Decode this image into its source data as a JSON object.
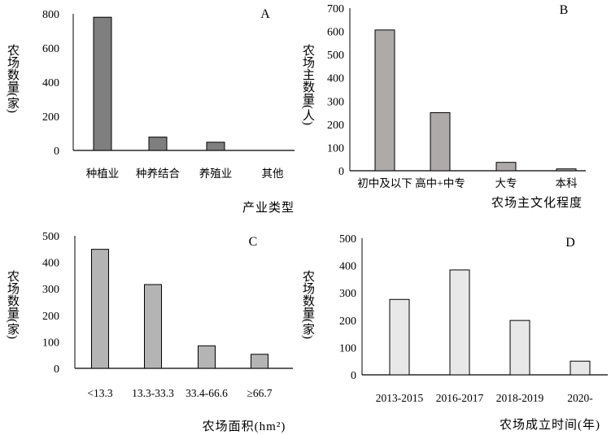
{
  "chart_data": [
    {
      "panel": "A",
      "type": "bar",
      "categories": [
        "种植业",
        "种养结合",
        "养殖业",
        "其他"
      ],
      "values": [
        780,
        78,
        48,
        0
      ],
      "ylim": [
        0,
        800
      ],
      "yticks": [
        0,
        200,
        400,
        600,
        800
      ],
      "xlabel": "产业类型",
      "ylabel": "农场数量(家)",
      "bar_color": "#7f7f7f"
    },
    {
      "panel": "B",
      "type": "bar",
      "categories": [
        "初中及以下",
        "高中+中专",
        "大专",
        "本科"
      ],
      "values": [
        606,
        250,
        36,
        8
      ],
      "ylim": [
        0,
        700
      ],
      "yticks": [
        0,
        100,
        200,
        300,
        400,
        500,
        600,
        700
      ],
      "xlabel": "农场主文化程度",
      "ylabel": "农场主数量(人)",
      "bar_color": "#aeaaaa"
    },
    {
      "panel": "C",
      "type": "bar",
      "categories": [
        "<13.3",
        "13.3-33.3",
        "33.4-66.6",
        "≥66.7"
      ],
      "values": [
        449,
        316,
        85,
        53
      ],
      "ylim": [
        0,
        500
      ],
      "yticks": [
        0,
        100,
        200,
        300,
        400,
        500
      ],
      "xlabel": "农场面积(hm²)",
      "ylabel": "农场数量(家)",
      "bar_color": "#b4b4b4"
    },
    {
      "panel": "D",
      "type": "bar",
      "categories": [
        "2013-2015",
        "2016-2017",
        "2018-2019",
        "2020-"
      ],
      "values": [
        276,
        384,
        199,
        50
      ],
      "ylim": [
        0,
        500
      ],
      "yticks": [
        0,
        100,
        200,
        300,
        400,
        500
      ],
      "xlabel": "农场成立时间(年)",
      "ylabel": "农场数量(家)",
      "bar_color": "#e8e8e8"
    }
  ]
}
